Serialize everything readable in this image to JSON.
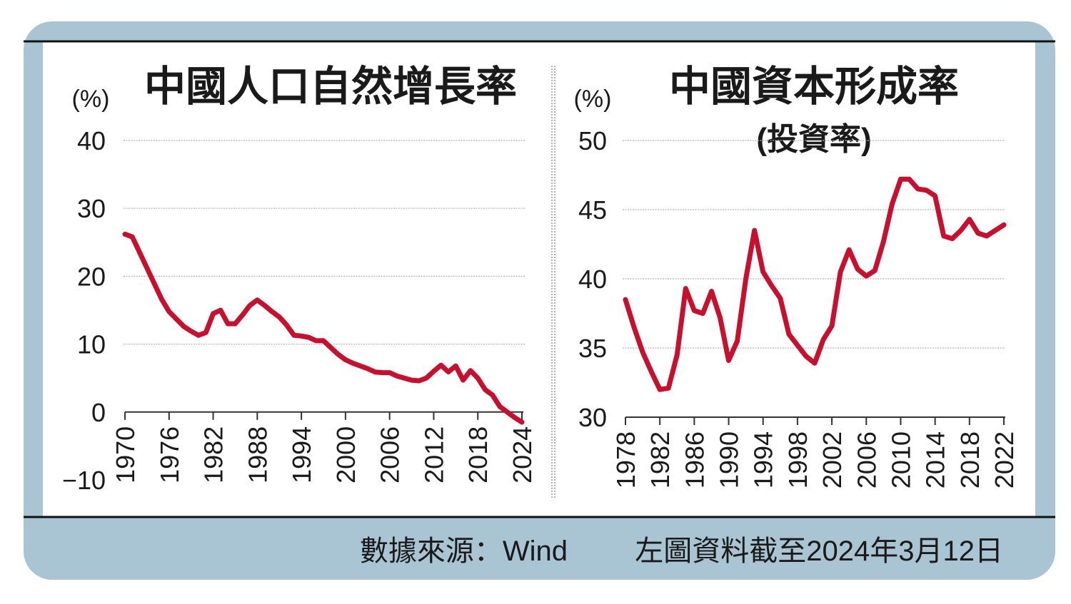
{
  "colors": {
    "frame": "#a9c4d3",
    "line": "#c8102e",
    "grid": "#b5b5b5",
    "text": "#1a1a1a"
  },
  "footer": {
    "source": "數據來源：Wind",
    "note": "左圖資料截至2024年3月12日"
  },
  "chart_data": [
    {
      "type": "line",
      "title": "中國人口自然增長率",
      "ylabel": "(%)",
      "xlabel": "",
      "ylim": [
        -10,
        40
      ],
      "yticks": [
        "40",
        "30",
        "20",
        "10",
        "0",
        "−10"
      ],
      "ytick_values": [
        40,
        30,
        20,
        10,
        0,
        -10
      ],
      "xlim": [
        1970,
        2024
      ],
      "xticks": [
        "1970",
        "1976",
        "1982",
        "1988",
        "1994",
        "2000",
        "2006",
        "2012",
        "2018",
        "2024"
      ],
      "grid": true,
      "x": [
        1970,
        1971,
        1972,
        1973,
        1974,
        1975,
        1976,
        1977,
        1978,
        1979,
        1980,
        1981,
        1982,
        1983,
        1984,
        1985,
        1986,
        1987,
        1988,
        1989,
        1990,
        1991,
        1992,
        1993,
        1994,
        1995,
        1996,
        1997,
        1998,
        1999,
        2000,
        2001,
        2002,
        2003,
        2004,
        2005,
        2006,
        2007,
        2008,
        2009,
        2010,
        2011,
        2012,
        2013,
        2014,
        2015,
        2016,
        2017,
        2018,
        2019,
        2020,
        2021,
        2022,
        2023,
        2024
      ],
      "values": [
        26.2,
        25.8,
        23.5,
        21.2,
        18.9,
        16.6,
        14.8,
        13.7,
        12.6,
        11.9,
        11.3,
        11.7,
        14.5,
        15.0,
        13.0,
        13.0,
        14.3,
        15.7,
        16.5,
        15.7,
        14.8,
        14.0,
        12.8,
        11.3,
        11.2,
        11.0,
        10.5,
        10.5,
        9.5,
        8.5,
        7.7,
        7.2,
        6.8,
        6.4,
        5.9,
        5.8,
        5.8,
        5.3,
        5.0,
        4.7,
        4.6,
        5.0,
        6.0,
        6.9,
        5.9,
        6.8,
        4.7,
        6.1,
        5.0,
        3.3,
        2.5,
        0.8,
        0.0,
        -0.8,
        -1.5
      ]
    },
    {
      "type": "line",
      "title": "中國資本形成率",
      "subtitle": "(投資率)",
      "ylabel": "(%)",
      "xlabel": "",
      "ylim": [
        30,
        50
      ],
      "yticks": [
        "50",
        "45",
        "40",
        "35",
        "30"
      ],
      "ytick_values": [
        50,
        45,
        40,
        35,
        30
      ],
      "xlim": [
        1978,
        2022
      ],
      "xticks": [
        "1978",
        "1982",
        "1986",
        "1990",
        "1994",
        "1998",
        "2002",
        "2006",
        "2010",
        "2014",
        "2018",
        "2022"
      ],
      "grid": true,
      "x": [
        1978,
        1979,
        1980,
        1981,
        1982,
        1983,
        1984,
        1985,
        1986,
        1987,
        1988,
        1989,
        1990,
        1991,
        1992,
        1993,
        1994,
        1995,
        1996,
        1997,
        1998,
        1999,
        2000,
        2001,
        2002,
        2003,
        2004,
        2005,
        2006,
        2007,
        2008,
        2009,
        2010,
        2011,
        2012,
        2013,
        2014,
        2015,
        2016,
        2017,
        2018,
        2019,
        2020,
        2021,
        2022
      ],
      "values": [
        38.5,
        36.5,
        34.7,
        33.3,
        32.0,
        32.1,
        34.5,
        39.3,
        37.7,
        37.5,
        39.1,
        37.2,
        34.1,
        35.5,
        40.0,
        43.5,
        40.5,
        39.5,
        38.6,
        36.0,
        35.2,
        34.4,
        33.9,
        35.6,
        36.6,
        40.5,
        42.1,
        40.7,
        40.2,
        40.6,
        42.7,
        45.4,
        47.2,
        47.2,
        46.5,
        46.4,
        46.0,
        43.1,
        42.9,
        43.5,
        44.3,
        43.3,
        43.1,
        43.5,
        43.9
      ]
    }
  ]
}
